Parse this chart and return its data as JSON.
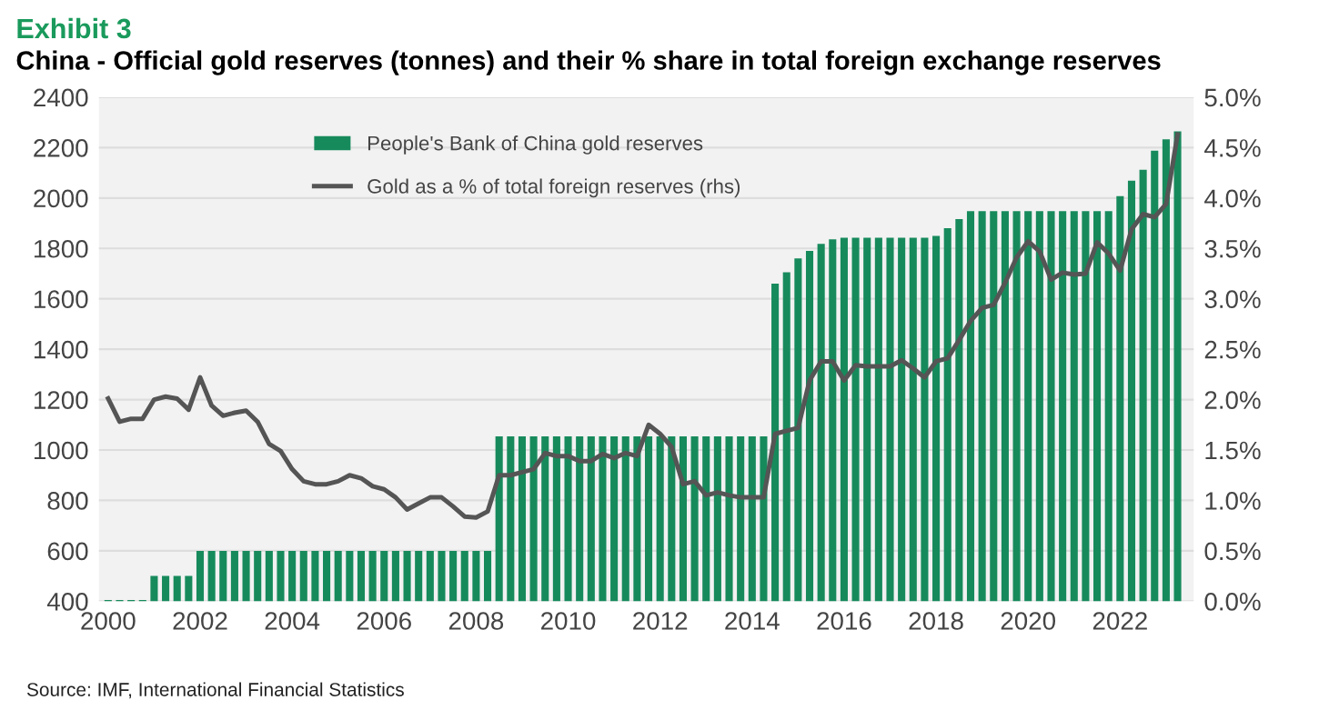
{
  "chart_data": {
    "type": "bar",
    "title": "Exhibit 3",
    "subtitle": "China - Official gold reserves (tonnes) and their % share in total foreign exchange reserves",
    "annotations": [
      "Source: IMF, International Financial Statistics"
    ],
    "x": [
      2000.0,
      2000.25,
      2000.5,
      2000.75,
      2001.0,
      2001.25,
      2001.5,
      2001.75,
      2002.0,
      2002.25,
      2002.5,
      2002.75,
      2003.0,
      2003.25,
      2003.5,
      2003.75,
      2004.0,
      2004.25,
      2004.5,
      2004.75,
      2005.0,
      2005.25,
      2005.5,
      2005.75,
      2006.0,
      2006.25,
      2006.5,
      2006.75,
      2007.0,
      2007.25,
      2007.5,
      2007.75,
      2008.0,
      2008.25,
      2008.5,
      2008.75,
      2009.0,
      2009.25,
      2009.5,
      2009.75,
      2010.0,
      2010.25,
      2010.5,
      2010.75,
      2011.0,
      2011.25,
      2011.5,
      2011.75,
      2012.0,
      2012.25,
      2012.5,
      2012.75,
      2013.0,
      2013.25,
      2013.5,
      2013.75,
      2014.0,
      2014.25,
      2014.5,
      2014.75,
      2015.0,
      2015.25,
      2015.5,
      2015.75,
      2016.0,
      2016.25,
      2016.5,
      2016.75,
      2017.0,
      2017.25,
      2017.5,
      2017.75,
      2018.0,
      2018.25,
      2018.5,
      2018.75,
      2019.0,
      2019.25,
      2019.5,
      2019.75,
      2020.0,
      2020.25,
      2020.5,
      2020.75,
      2021.0,
      2021.25,
      2021.5,
      2021.75,
      2022.0,
      2022.25,
      2022.5,
      2022.75,
      2023.0,
      2023.25
    ],
    "series": [
      {
        "name": "People's Bank of China gold reserves",
        "color": "#178a5c",
        "values": [
          405,
          405,
          405,
          405,
          500,
          500,
          500,
          500,
          600,
          600,
          600,
          600,
          600,
          600,
          600,
          600,
          600,
          600,
          600,
          600,
          600,
          600,
          600,
          600,
          600,
          600,
          600,
          600,
          600,
          600,
          600,
          600,
          600,
          600,
          1054,
          1054,
          1054,
          1054,
          1054,
          1054,
          1054,
          1054,
          1054,
          1054,
          1054,
          1054,
          1054,
          1054,
          1054,
          1054,
          1054,
          1054,
          1054,
          1054,
          1054,
          1054,
          1054,
          1054,
          1660,
          1705,
          1760,
          1790,
          1818,
          1836,
          1842,
          1842,
          1842,
          1842,
          1842,
          1842,
          1842,
          1842,
          1850,
          1880,
          1916,
          1948,
          1948,
          1948,
          1948,
          1948,
          1948,
          1948,
          1948,
          1948,
          1948,
          1948,
          1948,
          1948,
          2007,
          2069,
          2112,
          2188,
          2233,
          2264
        ]
      },
      {
        "name": "Gold as a % of total foreign reserves (rhs)",
        "type": "line",
        "axis": "y2",
        "color": "#555555",
        "values": [
          2.01,
          1.78,
          1.81,
          1.81,
          2.0,
          2.03,
          2.01,
          1.9,
          2.22,
          1.94,
          1.84,
          1.87,
          1.89,
          1.78,
          1.56,
          1.49,
          1.31,
          1.19,
          1.16,
          1.16,
          1.19,
          1.25,
          1.22,
          1.14,
          1.11,
          1.03,
          0.91,
          0.97,
          1.03,
          1.03,
          0.94,
          0.84,
          0.83,
          0.89,
          1.25,
          1.25,
          1.28,
          1.31,
          1.47,
          1.44,
          1.44,
          1.39,
          1.39,
          1.46,
          1.42,
          1.47,
          1.44,
          1.75,
          1.66,
          1.53,
          1.16,
          1.19,
          1.05,
          1.08,
          1.05,
          1.03,
          1.03,
          1.03,
          1.66,
          1.69,
          1.72,
          2.19,
          2.38,
          2.38,
          2.19,
          2.34,
          2.33,
          2.33,
          2.33,
          2.39,
          2.31,
          2.22,
          2.38,
          2.41,
          2.59,
          2.78,
          2.91,
          2.94,
          3.16,
          3.41,
          3.57,
          3.47,
          3.19,
          3.26,
          3.24,
          3.25,
          3.56,
          3.45,
          3.28,
          3.69,
          3.84,
          3.81,
          3.94,
          4.63
        ]
      }
    ],
    "xlim": [
      1999.8,
      2023.6
    ],
    "xticks": [
      2000,
      2002,
      2004,
      2006,
      2008,
      2010,
      2012,
      2014,
      2016,
      2018,
      2020,
      2022
    ],
    "ylim": [
      400,
      2400
    ],
    "yticks": [
      400,
      600,
      800,
      1000,
      1200,
      1400,
      1600,
      1800,
      2000,
      2200,
      2400
    ],
    "y2lim": [
      0,
      5
    ],
    "y2ticks": [
      {
        "value": 0,
        "label": "0.0%"
      },
      {
        "value": 0.5,
        "label": "0.5%"
      },
      {
        "value": 1,
        "label": "1.0%"
      },
      {
        "value": 1.5,
        "label": "1.5%"
      },
      {
        "value": 2,
        "label": "2.0%"
      },
      {
        "value": 2.5,
        "label": "2.5%"
      },
      {
        "value": 3,
        "label": "3.0%"
      },
      {
        "value": 3.5,
        "label": "3.5%"
      },
      {
        "value": 4,
        "label": "4.0%"
      },
      {
        "value": 4.5,
        "label": "4.5%"
      },
      {
        "value": 5,
        "label": "5.0%"
      }
    ],
    "grid": "y",
    "legend": "top left",
    "marker": "none",
    "line_style": "solid"
  }
}
